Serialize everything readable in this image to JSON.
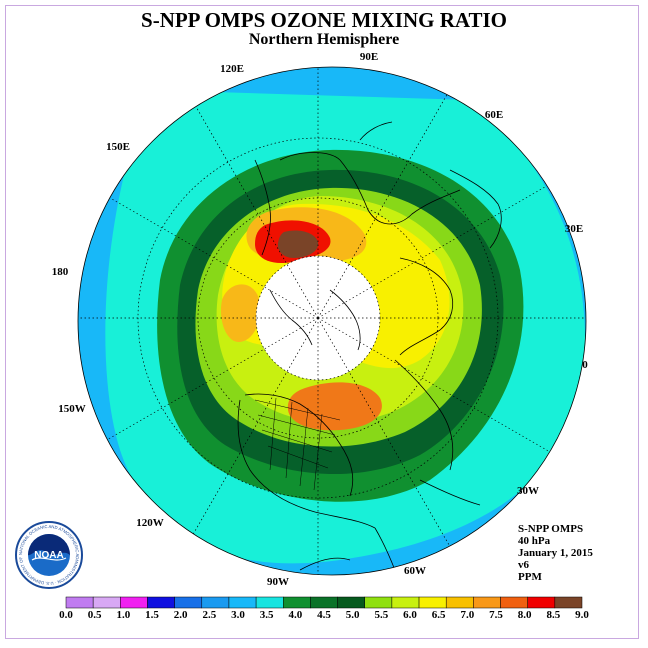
{
  "header": {
    "title": "S-NPP OMPS OZONE MIXING RATIO",
    "subtitle": "Northern Hemisphere"
  },
  "info": {
    "product": "S-NPP OMPS",
    "pressure": "40 hPa",
    "date": "January 1, 2015",
    "version": "v6",
    "units": "PPM"
  },
  "longitude_labels": [
    "90E",
    "60E",
    "30E",
    "0",
    "30W",
    "60W",
    "90W",
    "120W",
    "150W",
    "180",
    "150E",
    "120E"
  ],
  "colorbar": {
    "ticks": [
      "0.0",
      "0.5",
      "1.0",
      "1.5",
      "2.0",
      "2.5",
      "3.0",
      "3.5",
      "4.0",
      "4.5",
      "5.0",
      "5.5",
      "6.0",
      "6.5",
      "7.0",
      "7.5",
      "8.0",
      "8.5",
      "9.0"
    ],
    "colors": [
      "#c07cf0",
      "#d8a8f4",
      "#f020f0",
      "#1010e0",
      "#1870e8",
      "#1a9af0",
      "#18b8f8",
      "#18e4e0",
      "#109030",
      "#0a7228",
      "#065a1e",
      "#90e010",
      "#c8f010",
      "#f8f000",
      "#f8c000",
      "#f89818",
      "#f06010",
      "#f00000",
      "#7a4428"
    ]
  },
  "map_colors": {
    "ocean_outer": "#18b8f8",
    "cyan": "#18f0d8",
    "green": "#109030",
    "dark_green": "#06602a",
    "light_green": "#88d818",
    "yellow_green": "#c8f010",
    "yellow": "#f8f000",
    "orange": "#f8b818",
    "dark_orange": "#f07818",
    "red": "#f01000",
    "brown": "#7a4428",
    "polar_night": "#ffffff"
  },
  "logo": {
    "name": "NOAA",
    "ring_text": "NATIONAL OCEANIC AND ATMOSPHERIC ADMINISTRATION · U.S. DEPARTMENT OF COMMERCE"
  }
}
